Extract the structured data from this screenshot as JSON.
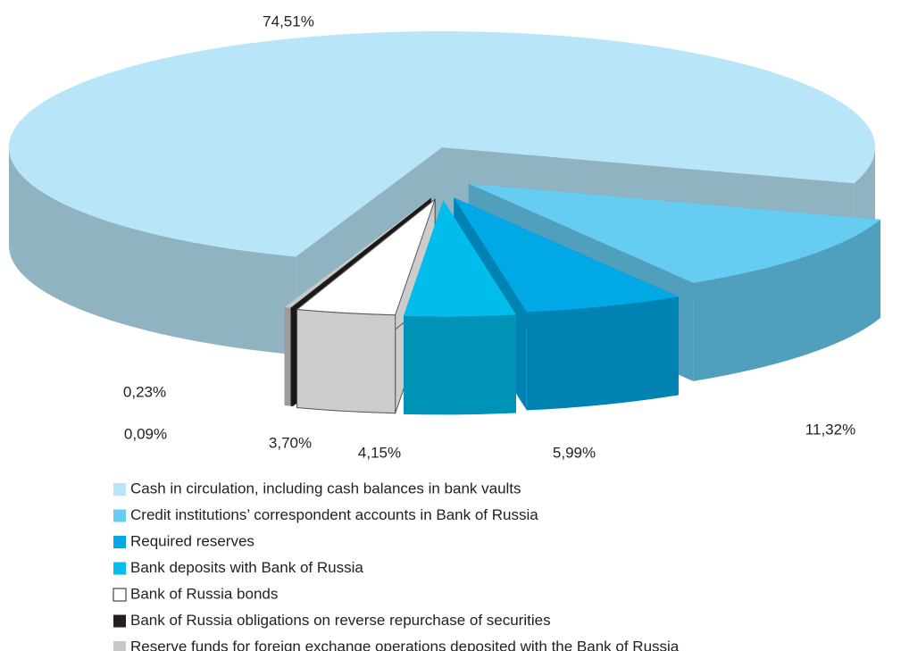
{
  "chart_data": {
    "type": "pie3d",
    "categories": [
      "Cash in circulation, including cash balances in bank vaults",
      "Credit institutions’ correspondent accounts in Bank of Russia",
      "Required reserves",
      "Bank deposits with Bank of Russia",
      "Bank of Russia  bonds",
      "Bank of Russia obligations on reverse repurchase of securities",
      "Reserve funds for foreign exchange operations deposited with the Bank of Russia"
    ],
    "values": [
      74.51,
      11.32,
      5.99,
      4.15,
      3.7,
      0.09,
      0.23
    ],
    "value_labels": [
      "74,51%",
      "11,32%",
      "5,99%",
      "4,15%",
      "3,70%",
      "0,09%",
      "0,23%"
    ],
    "colors": [
      "#b9e5f8",
      "#66ccf2",
      "#00a8e6",
      "#00bdec",
      "#ffffff",
      "#231f20",
      "#c8c8c8"
    ],
    "legend": "bottom"
  }
}
